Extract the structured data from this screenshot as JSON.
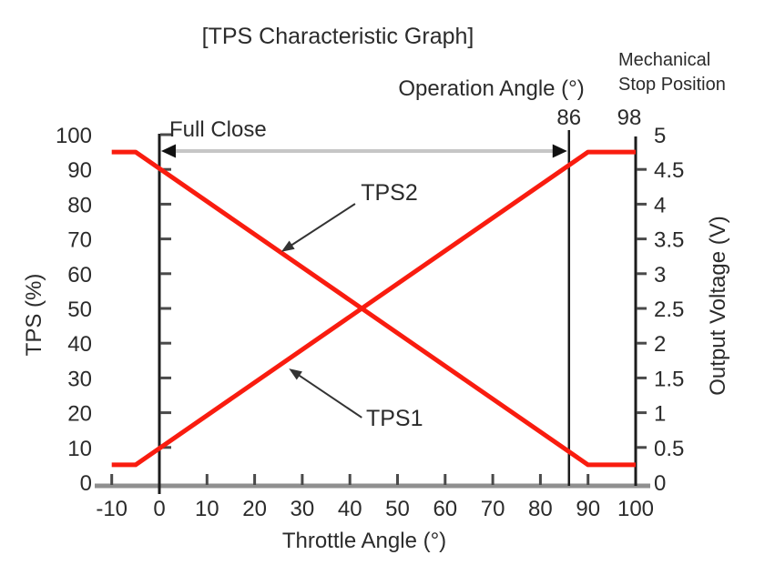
{
  "chart_data": {
    "type": "line",
    "title": "[TPS Characteristic Graph]",
    "xlabel": "Throttle Angle (°)",
    "ylabel_left": "TPS (%)",
    "ylabel_right": "Output Voltage (V)",
    "xlim": [
      -10,
      100
    ],
    "ylim_left": [
      0,
      100
    ],
    "ylim_right": [
      0,
      5
    ],
    "x_ticks": [
      -10,
      0,
      10,
      20,
      30,
      40,
      50,
      60,
      70,
      80,
      90,
      100
    ],
    "y_left_ticks": [
      0,
      10,
      20,
      30,
      40,
      50,
      60,
      70,
      80,
      90,
      100
    ],
    "y_right_ticks": [
      0,
      0.5,
      1,
      1.5,
      2,
      2.5,
      3,
      3.5,
      4,
      4.5,
      5
    ],
    "grid": false,
    "legend": "inline-annotations",
    "series": [
      {
        "name": "TPS1",
        "color": "#f91c0f",
        "points": [
          [
            -10,
            5
          ],
          [
            -5,
            5
          ],
          [
            90,
            95
          ],
          [
            100,
            95
          ]
        ]
      },
      {
        "name": "TPS2",
        "color": "#f91c0f",
        "points": [
          [
            -10,
            95
          ],
          [
            -5,
            95
          ],
          [
            90,
            5
          ],
          [
            100,
            5
          ]
        ]
      }
    ],
    "reference_lines": [
      {
        "name": "full-close-line",
        "x": 0
      },
      {
        "name": "operation-angle-line",
        "x": 86
      },
      {
        "name": "mechanical-stop-line",
        "x": 98,
        "drawn_at_x": 100
      }
    ],
    "annotations": {
      "full_close": {
        "label": "Full Close",
        "arrow_from_x": 0,
        "arrow_to_x": 86,
        "arrow_y_pct": 95.3
      },
      "operation_angle": {
        "label": "Operation Angle (°)",
        "value": "86"
      },
      "mechanical_stop": {
        "label_line1": "Mechanical",
        "label_line2": "Stop Position",
        "value": "98"
      },
      "series_labels": [
        {
          "text": "TPS1",
          "label_x": 43.4,
          "label_y_pct": 16.2,
          "tail_x": 42.5,
          "tail_y_pct": 18.6,
          "target_x": 27.2,
          "target_y_pct": 32.7
        },
        {
          "text": "TPS2",
          "label_x": 42.3,
          "label_y_pct": 81.2,
          "tail_x": 41.1,
          "tail_y_pct": 80.1,
          "target_x": 25.6,
          "target_y_pct": 66.3
        }
      ]
    },
    "colors": {
      "series": "#f91c0f",
      "bottom_axis": "#8f8f8f",
      "axis_lines": "#1c1c1c",
      "tick_marks": "#4a4a4a",
      "text": "#2b2b2b",
      "range_arrow_shaft": "#c6c6c6",
      "range_arrow_head": "#111111",
      "annotation_arrow": "#333333",
      "background": "#ffffff"
    }
  }
}
